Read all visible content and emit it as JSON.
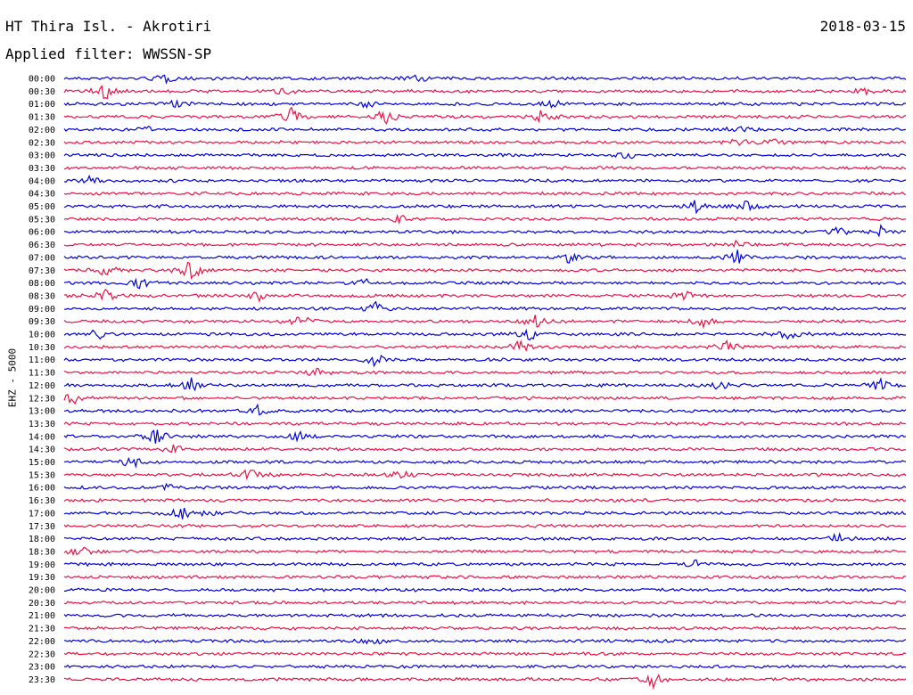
{
  "header": {
    "title": "HT Thira Isl. - Akrotiri",
    "date": "2018-03-15",
    "filter": "Applied filter: WWSSN-SP"
  },
  "colors": {
    "trace_a": "#0000dd",
    "trace_b": "#ee1144"
  },
  "chart_data": {
    "type": "line",
    "title": "HT Thira Isl. - Akrotiri",
    "ylabel": "EHZ - 5000",
    "legend": "none",
    "grid": false,
    "rows": [
      {
        "t": "00:00",
        "color": "blue",
        "events": [
          [
            0.12,
            0.4
          ],
          [
            0.42,
            0.3
          ]
        ]
      },
      {
        "t": "00:30",
        "color": "red",
        "events": [
          [
            0.05,
            0.8
          ],
          [
            0.26,
            0.3
          ],
          [
            0.95,
            0.3
          ]
        ]
      },
      {
        "t": "01:00",
        "color": "blue",
        "events": [
          [
            0.13,
            0.3
          ],
          [
            0.36,
            0.3
          ],
          [
            0.58,
            0.3
          ]
        ]
      },
      {
        "t": "01:30",
        "color": "red",
        "events": [
          [
            0.27,
            0.7
          ],
          [
            0.38,
            1.0
          ],
          [
            0.57,
            0.8
          ]
        ]
      },
      {
        "t": "02:00",
        "color": "blue",
        "events": [
          [
            0.1,
            0.2
          ],
          [
            0.8,
            0.3
          ]
        ]
      },
      {
        "t": "02:30",
        "color": "red",
        "events": [
          [
            0.8,
            0.3
          ],
          [
            0.84,
            0.3
          ]
        ]
      },
      {
        "t": "03:00",
        "color": "blue",
        "events": [
          [
            0.67,
            0.3
          ]
        ]
      },
      {
        "t": "03:30",
        "color": "red",
        "events": []
      },
      {
        "t": "04:00",
        "color": "blue",
        "events": [
          [
            0.03,
            0.3
          ]
        ]
      },
      {
        "t": "04:30",
        "color": "red",
        "events": []
      },
      {
        "t": "05:00",
        "color": "blue",
        "events": [
          [
            0.75,
            0.5
          ],
          [
            0.81,
            0.4
          ]
        ]
      },
      {
        "t": "05:30",
        "color": "red",
        "events": [
          [
            0.4,
            0.3
          ]
        ]
      },
      {
        "t": "06:00",
        "color": "blue",
        "events": [
          [
            0.92,
            0.4
          ],
          [
            0.97,
            0.4
          ]
        ]
      },
      {
        "t": "06:30",
        "color": "red",
        "events": [
          [
            0.8,
            0.3
          ]
        ]
      },
      {
        "t": "07:00",
        "color": "blue",
        "events": [
          [
            0.6,
            0.4
          ],
          [
            0.8,
            0.6
          ]
        ]
      },
      {
        "t": "07:30",
        "color": "red",
        "events": [
          [
            0.05,
            0.5
          ],
          [
            0.15,
            0.9
          ]
        ]
      },
      {
        "t": "08:00",
        "color": "blue",
        "events": [
          [
            0.09,
            0.5
          ],
          [
            0.36,
            0.4
          ]
        ]
      },
      {
        "t": "08:30",
        "color": "red",
        "events": [
          [
            0.05,
            0.5
          ],
          [
            0.23,
            0.4
          ],
          [
            0.74,
            0.5
          ]
        ]
      },
      {
        "t": "09:00",
        "color": "blue",
        "events": [
          [
            0.37,
            0.5
          ]
        ]
      },
      {
        "t": "09:30",
        "color": "red",
        "events": [
          [
            0.28,
            0.6
          ],
          [
            0.56,
            0.6
          ],
          [
            0.76,
            0.5
          ]
        ]
      },
      {
        "t": "10:00",
        "color": "blue",
        "events": [
          [
            0.04,
            0.5
          ],
          [
            0.55,
            0.6
          ],
          [
            0.86,
            0.4
          ]
        ]
      },
      {
        "t": "10:30",
        "color": "red",
        "events": [
          [
            0.54,
            0.5
          ],
          [
            0.79,
            0.6
          ]
        ]
      },
      {
        "t": "11:00",
        "color": "blue",
        "events": [
          [
            0.37,
            0.5
          ]
        ]
      },
      {
        "t": "11:30",
        "color": "red",
        "events": [
          [
            0.3,
            0.4
          ]
        ]
      },
      {
        "t": "12:00",
        "color": "blue",
        "events": [
          [
            0.15,
            0.6
          ],
          [
            0.78,
            0.4
          ],
          [
            0.97,
            0.5
          ]
        ]
      },
      {
        "t": "12:30",
        "color": "red",
        "events": [
          [
            0.01,
            0.5
          ]
        ]
      },
      {
        "t": "13:00",
        "color": "blue",
        "events": [
          [
            0.23,
            0.4
          ]
        ]
      },
      {
        "t": "13:30",
        "color": "red",
        "events": []
      },
      {
        "t": "14:00",
        "color": "blue",
        "events": [
          [
            0.11,
            0.6
          ],
          [
            0.28,
            0.4
          ]
        ]
      },
      {
        "t": "14:30",
        "color": "red",
        "events": [
          [
            0.13,
            0.3
          ]
        ]
      },
      {
        "t": "15:00",
        "color": "blue",
        "events": [
          [
            0.08,
            0.6
          ]
        ]
      },
      {
        "t": "15:30",
        "color": "red",
        "events": [
          [
            0.22,
            0.5
          ],
          [
            0.4,
            0.4
          ]
        ]
      },
      {
        "t": "16:00",
        "color": "blue",
        "events": [
          [
            0.12,
            0.3
          ]
        ]
      },
      {
        "t": "16:30",
        "color": "red",
        "events": []
      },
      {
        "t": "17:00",
        "color": "blue",
        "events": [
          [
            0.14,
            0.5
          ],
          [
            0.17,
            0.3
          ]
        ]
      },
      {
        "t": "17:30",
        "color": "red",
        "events": []
      },
      {
        "t": "18:00",
        "color": "blue",
        "events": [
          [
            0.92,
            0.4
          ]
        ]
      },
      {
        "t": "18:30",
        "color": "red",
        "events": [
          [
            0.02,
            0.4
          ]
        ]
      },
      {
        "t": "19:00",
        "color": "blue",
        "events": [
          [
            0.75,
            0.3
          ]
        ]
      },
      {
        "t": "19:30",
        "color": "red",
        "events": []
      },
      {
        "t": "20:00",
        "color": "blue",
        "events": []
      },
      {
        "t": "20:30",
        "color": "red",
        "events": []
      },
      {
        "t": "21:00",
        "color": "blue",
        "events": []
      },
      {
        "t": "21:30",
        "color": "red",
        "events": []
      },
      {
        "t": "22:00",
        "color": "blue",
        "events": [
          [
            0.37,
            0.3
          ]
        ]
      },
      {
        "t": "22:30",
        "color": "red",
        "events": []
      },
      {
        "t": "23:00",
        "color": "blue",
        "events": []
      },
      {
        "t": "23:30",
        "color": "red",
        "events": [
          [
            0.7,
            0.6
          ]
        ]
      }
    ]
  }
}
